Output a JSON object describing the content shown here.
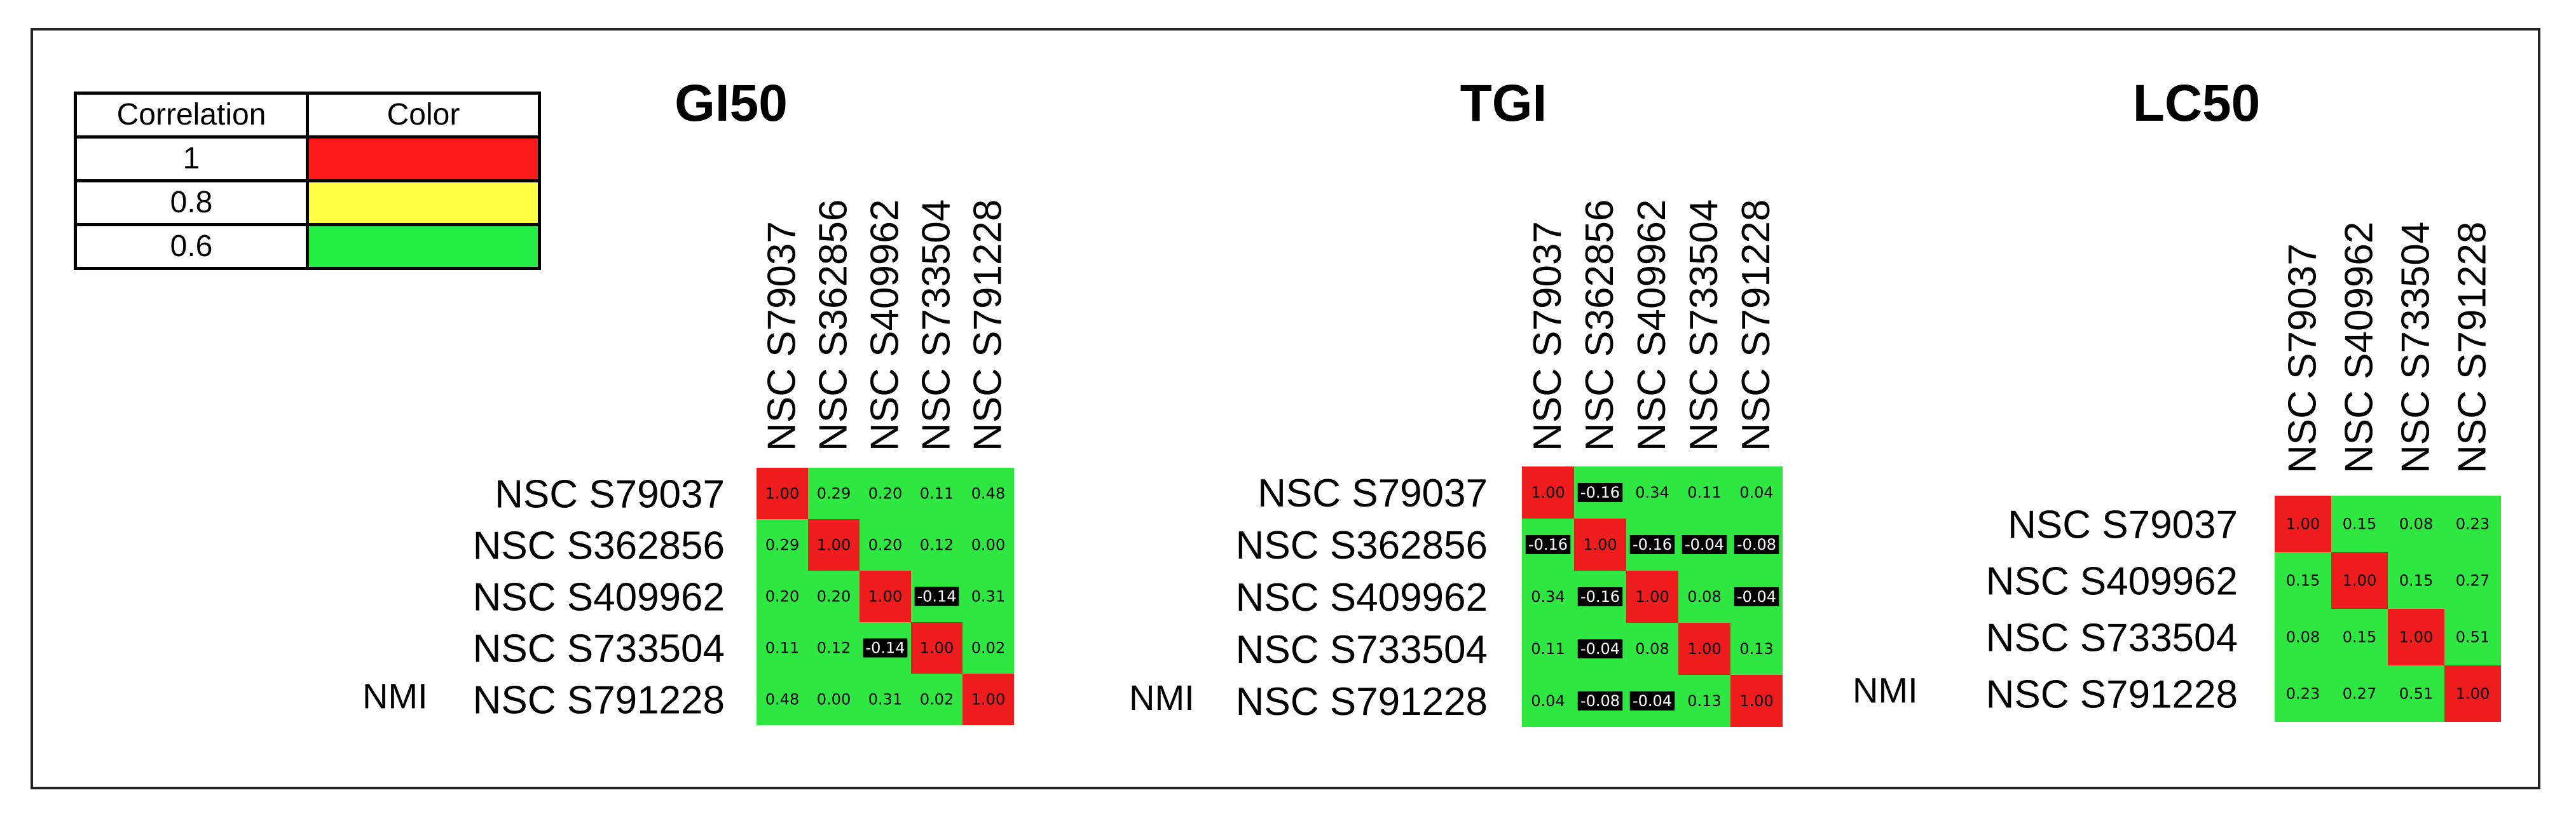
{
  "legend": {
    "headers": [
      "Correlation",
      "Color"
    ],
    "rows": [
      {
        "value": "1",
        "color": "#ff1a1a"
      },
      {
        "value": "0.8",
        "color": "#ffff44"
      },
      {
        "value": "0.6",
        "color": "#22ee44"
      }
    ]
  },
  "colors": {
    "diagonal": "#ee1c1c",
    "offdiag": "#2ee841",
    "negative_bg": "#000000",
    "text_dark": "#000000",
    "text_light": "#ffffff"
  },
  "chart_data": [
    {
      "type": "heatmap",
      "title": "GI50",
      "row_prefix": "NMI",
      "labels": [
        "NSC S79037",
        "NSC S362856",
        "NSC S409962",
        "NSC S733504",
        "NSC S791228"
      ],
      "values": [
        [
          1.0,
          0.29,
          0.2,
          0.11,
          0.48
        ],
        [
          0.29,
          1.0,
          0.2,
          0.12,
          0.0
        ],
        [
          0.2,
          0.2,
          1.0,
          -0.14,
          0.31
        ],
        [
          0.11,
          0.12,
          -0.14,
          1.0,
          0.02
        ],
        [
          0.48,
          0.0,
          0.31,
          0.02,
          1.0
        ]
      ]
    },
    {
      "type": "heatmap",
      "title": "TGI",
      "row_prefix": "NMI",
      "labels": [
        "NSC S79037",
        "NSC S362856",
        "NSC S409962",
        "NSC S733504",
        "NSC S791228"
      ],
      "values": [
        [
          1.0,
          -0.16,
          0.34,
          0.11,
          0.04
        ],
        [
          -0.16,
          1.0,
          -0.16,
          -0.04,
          -0.08
        ],
        [
          0.34,
          -0.16,
          1.0,
          0.08,
          -0.04
        ],
        [
          0.11,
          -0.04,
          0.08,
          1.0,
          0.13
        ],
        [
          0.04,
          -0.08,
          -0.04,
          0.13,
          1.0
        ]
      ]
    },
    {
      "type": "heatmap",
      "title": "LC50",
      "row_prefix": "NMI",
      "labels": [
        "NSC S79037",
        "NSC S409962",
        "NSC S733504",
        "NSC S791228"
      ],
      "values": [
        [
          1.0,
          0.15,
          0.08,
          0.23
        ],
        [
          0.15,
          1.0,
          0.15,
          0.27
        ],
        [
          0.08,
          0.15,
          1.0,
          0.51
        ],
        [
          0.23,
          0.27,
          0.51,
          1.0
        ]
      ]
    }
  ]
}
